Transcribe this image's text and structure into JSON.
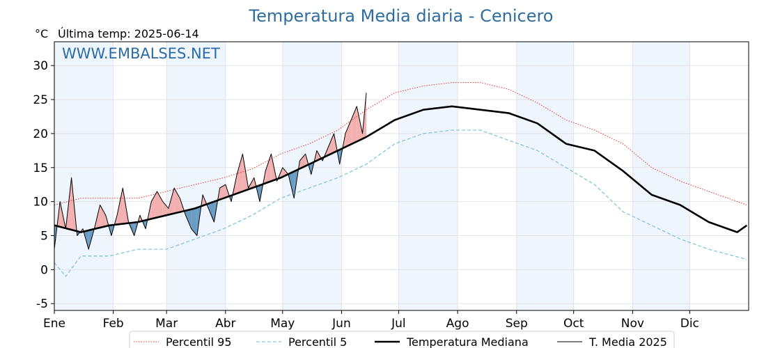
{
  "chart_data": {
    "type": "line",
    "title": "Temperatura Media diaria - Cenicero",
    "unit": "°C",
    "last_temp_label": "Última temp: 2025-06-14",
    "watermark": "WWW.EMBALSES.NET",
    "months": [
      "Ene",
      "Feb",
      "Mar",
      "Abr",
      "May",
      "Jun",
      "Jul",
      "Ago",
      "Sep",
      "Oct",
      "Nov",
      "Dic"
    ],
    "ylim": [
      -6,
      33.5
    ],
    "yticks": [
      -5,
      0,
      5,
      10,
      15,
      20,
      25,
      30
    ],
    "grid": true,
    "legend_position": "bottom-center",
    "colors": {
      "p95": "#e8302c",
      "p5": "#86c5da",
      "median": "#000000",
      "t2025": "#000000",
      "above": "#f3b0b0",
      "below": "#6a9cc4",
      "band": "#eef5fc"
    },
    "series": [
      {
        "name": "Percentil 95",
        "style": "dotted",
        "x": [
          1,
          15,
          30,
          45,
          60,
          75,
          90,
          105,
          120,
          135,
          150,
          165,
          180,
          195,
          210,
          225,
          240,
          255,
          270,
          285,
          300,
          315,
          330,
          345,
          360,
          365
        ],
        "values": [
          9.5,
          10.5,
          10.5,
          10.5,
          11.5,
          12.5,
          13.5,
          14.8,
          17,
          18.5,
          20.5,
          23.5,
          26,
          27,
          27.5,
          27.5,
          26.5,
          24.5,
          22,
          20.5,
          18.5,
          15,
          13,
          11.5,
          10,
          9.5
        ]
      },
      {
        "name": "Percentil 5",
        "style": "dashed",
        "x": [
          1,
          7,
          15,
          30,
          45,
          60,
          75,
          90,
          105,
          120,
          135,
          150,
          165,
          180,
          195,
          210,
          225,
          240,
          255,
          270,
          285,
          300,
          315,
          330,
          345,
          365
        ],
        "values": [
          1,
          -1,
          2,
          2,
          3,
          3,
          4.5,
          6,
          8,
          10.5,
          12,
          13.5,
          15.5,
          18.5,
          20,
          20.5,
          20.5,
          19,
          17.5,
          15,
          12.5,
          8.5,
          6.5,
          4.5,
          3,
          1.5
        ]
      },
      {
        "name": "Temperatura Mediana",
        "style": "bold",
        "x": [
          1,
          15,
          30,
          45,
          60,
          75,
          90,
          105,
          120,
          135,
          150,
          165,
          180,
          195,
          210,
          225,
          240,
          255,
          270,
          285,
          300,
          315,
          330,
          345,
          360,
          365
        ],
        "values": [
          6.5,
          5.5,
          6.5,
          7,
          8,
          9,
          10.5,
          12,
          13.5,
          15.5,
          17.5,
          19.5,
          22,
          23.5,
          24,
          23.5,
          23,
          21.5,
          18.5,
          17.5,
          14.5,
          11,
          9.5,
          7,
          5.5,
          6.5
        ]
      },
      {
        "name": "T. Media 2025",
        "style": "thin",
        "x": [
          1,
          4,
          7,
          10,
          13,
          16,
          19,
          22,
          25,
          28,
          31,
          34,
          37,
          40,
          43,
          46,
          49,
          52,
          55,
          58,
          61,
          64,
          67,
          70,
          73,
          76,
          79,
          82,
          85,
          88,
          91,
          94,
          97,
          100,
          103,
          106,
          109,
          112,
          115,
          118,
          121,
          124,
          127,
          130,
          133,
          136,
          139,
          142,
          145,
          148,
          151,
          154,
          157,
          160,
          163,
          165
        ],
        "values": [
          3,
          10,
          6,
          13.5,
          5,
          6,
          3,
          6,
          9.5,
          8,
          5,
          8,
          12,
          7,
          5,
          8,
          6,
          10,
          11.5,
          10,
          9,
          12,
          10.5,
          8,
          6,
          5,
          11,
          9,
          7,
          12,
          12.5,
          10,
          14,
          17,
          12,
          13.5,
          10,
          14.5,
          17,
          13,
          15,
          14,
          10.5,
          16,
          17,
          14,
          17.5,
          16,
          18,
          20,
          15.5,
          20,
          22,
          24,
          20,
          26
        ]
      }
    ]
  }
}
